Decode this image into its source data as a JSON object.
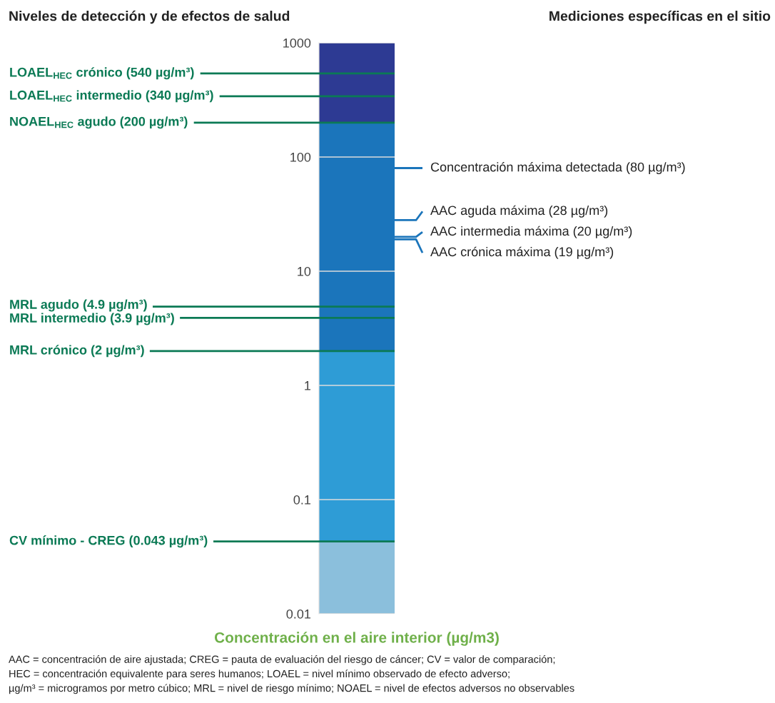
{
  "chart_data": {
    "type": "bar",
    "stacked": true,
    "log": true,
    "title": "Niveles de detección y de efectos de salud",
    "subtitle": "Mediciones específicas en el sitio",
    "xlabel": "Concentración en el aire interior (µg/m3)",
    "categories": [
      null
    ],
    "series": [
      {
        "color": "#8bbfdc",
        "values": [
          0.043
        ]
      },
      {
        "color": "#2e9cd6",
        "values": [
          1.957
        ]
      },
      {
        "color": "#1b75bb",
        "values": [
          198
        ]
      },
      {
        "color": "#2d3a93",
        "values": [
          800
        ]
      }
    ],
    "ylim": [
      0.01,
      1000
    ],
    "yticks": [
      0.01,
      0.1,
      1,
      10,
      100,
      1000
    ],
    "grid": "y",
    "ref_lines": [
      {
        "axis": "y",
        "value": 540,
        "label": "LOAEL$_{HEC}$ crónico (540 µg/m³)",
        "color": "#0b7a55"
      },
      {
        "axis": "y",
        "value": 340,
        "label": "LOAEL$_{HEC}$ intermedio (340 µg/m³)",
        "color": "#0b7a55"
      },
      {
        "axis": "y",
        "value": 200,
        "label": "NOAEL$_{HEC}$ agudo (200 µg/m³)",
        "color": "#0b7a55"
      },
      {
        "axis": "y",
        "value": 4.9,
        "label": "MRL agudo (4.9 µg/m³)",
        "color": "#0b7a55"
      },
      {
        "axis": "y",
        "value": 3.9,
        "label": "MRL intermedio (3.9 µg/m³)",
        "color": "#0b7a55"
      },
      {
        "axis": "y",
        "value": 2,
        "label": "MRL crónico (2 µg/m³)",
        "color": "#0b7a55"
      },
      {
        "axis": "y",
        "value": 0.043,
        "label": "CV mínimo - CREG (0.043 µg/m³)",
        "color": "#0b7a55"
      },
      {
        "axis": "y",
        "value": 80,
        "label": "Concentración máxima detectada (80 µg/m³)",
        "color": "#1b75bb"
      },
      {
        "axis": "y",
        "value": 28,
        "label": "AAC aguda máxima (28 µg/m³)",
        "color": "#1b75bb"
      },
      {
        "axis": "y",
        "value": 20,
        "label": "AAC intermedia máxima (20 µg/m³)",
        "color": "#1b75bb"
      },
      {
        "axis": "y",
        "value": 19,
        "label": "AAC crónica máxima (19 µg/m³)",
        "color": "#1b75bb"
      }
    ],
    "annotations": [
      "AAC = concentración de aire ajustada; CREG = pauta de evaluación del riesgo de cáncer; CV = valor de comparación;\nHEC = concentración equivalente para seres humanos; LOAEL = nivel mínimo observado de efecto adverso;\nµg/m³ = microgramos por metro cúbico; MRL = nivel de riesgo mínimo; NOAEL = nivel de efectos adversos no observables"
    ]
  }
}
